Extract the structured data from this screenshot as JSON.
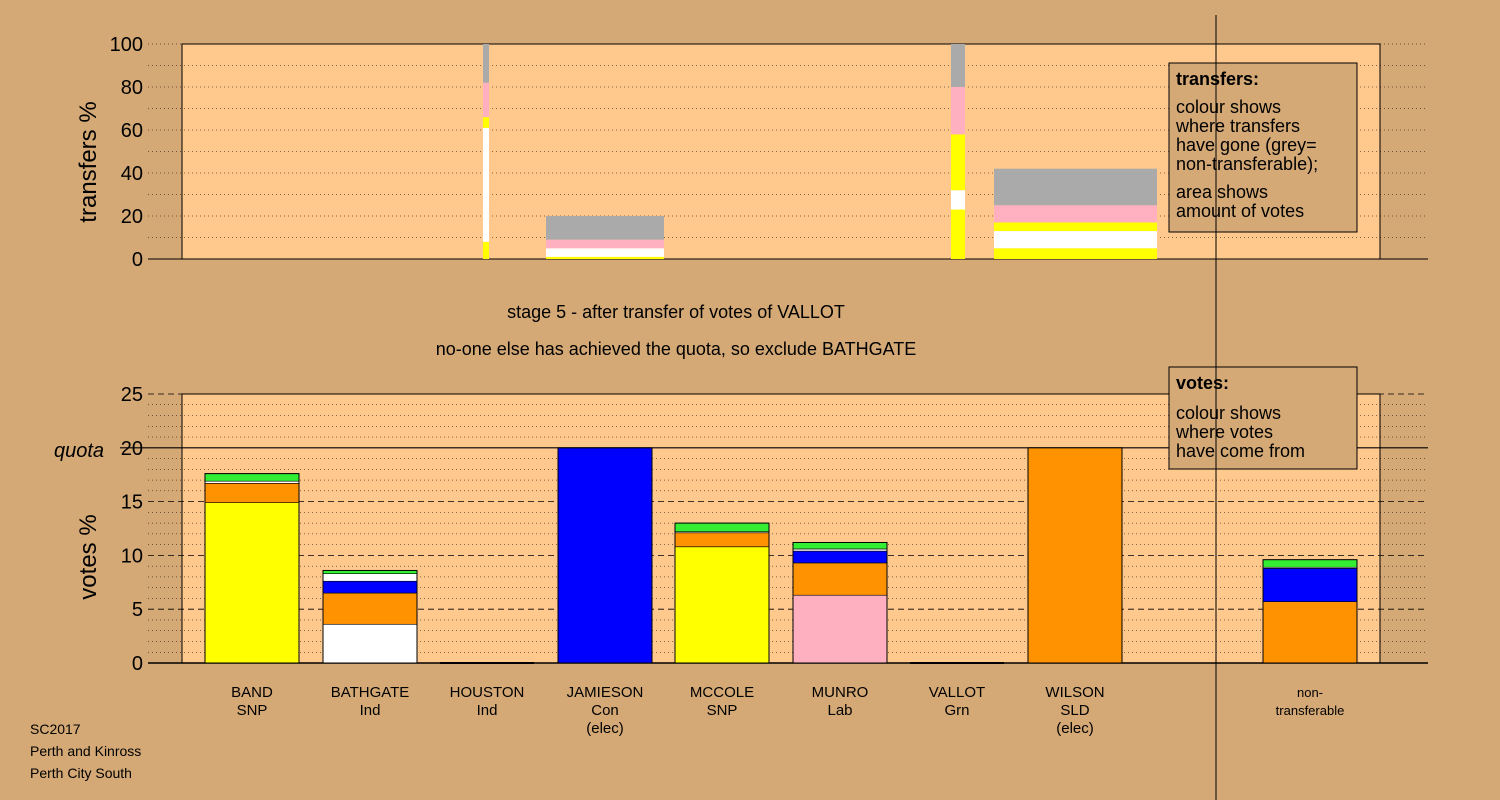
{
  "colors": {
    "background": "#D4A976",
    "plot_area": "#FFC98E",
    "grey": "#AAAAAA",
    "pink": "#FFB0C0",
    "white": "#FFFFFF",
    "yellow": "#FFFF00",
    "green": "#33EE33",
    "blue": "#0000FF",
    "orange": "#FF9200"
  },
  "header": {
    "stage_line": "stage 5 - after transfer of votes of VALLOT",
    "action_line": "no-one else has achieved the quota, so exclude BATHGATE"
  },
  "footer": {
    "election": "SC2017",
    "council": "Perth and Kinross",
    "ward": "Perth City South"
  },
  "legends": {
    "transfers": {
      "title": "transfers:",
      "lines1": [
        "colour shows",
        "where transfers",
        "have gone (grey=",
        "non-transferable);"
      ],
      "lines2": [
        "area shows",
        "amount of votes"
      ]
    },
    "votes": {
      "title": "votes:",
      "lines": [
        "colour shows",
        "where votes",
        "have come from"
      ]
    }
  },
  "chart_data": [
    {
      "type": "bar",
      "subtype": "variable-width stacked transfer bars",
      "ylabel": "transfers %",
      "ylim": [
        0,
        100
      ],
      "yticks": [
        0,
        20,
        40,
        60,
        80,
        100
      ],
      "grid": "dotted every 10",
      "bars": [
        {
          "name": "bar-1",
          "segments": [
            {
              "color": "yellow",
              "from": 0,
              "to": 8
            },
            {
              "color": "white",
              "from": 8,
              "to": 61
            },
            {
              "color": "yellow",
              "from": 61,
              "to": 66
            },
            {
              "color": "pink",
              "from": 66,
              "to": 82
            },
            {
              "color": "grey",
              "from": 82,
              "to": 100
            }
          ]
        },
        {
          "name": "bar-2",
          "segments": [
            {
              "color": "yellow",
              "from": 0,
              "to": 1
            },
            {
              "color": "white",
              "from": 1,
              "to": 5
            },
            {
              "color": "pink",
              "from": 5,
              "to": 9
            },
            {
              "color": "grey",
              "from": 9,
              "to": 20
            }
          ]
        },
        {
          "name": "bar-3",
          "segments": [
            {
              "color": "yellow",
              "from": 0,
              "to": 23
            },
            {
              "color": "white",
              "from": 23,
              "to": 32
            },
            {
              "color": "yellow",
              "from": 32,
              "to": 58
            },
            {
              "color": "pink",
              "from": 58,
              "to": 80
            },
            {
              "color": "grey",
              "from": 80,
              "to": 100
            }
          ]
        },
        {
          "name": "bar-4",
          "segments": [
            {
              "color": "yellow",
              "from": 0,
              "to": 5
            },
            {
              "color": "white",
              "from": 5,
              "to": 13
            },
            {
              "color": "yellow",
              "from": 13,
              "to": 17
            },
            {
              "color": "pink",
              "from": 17,
              "to": 21
            },
            {
              "color": "pink",
              "from": 21,
              "to": 25
            },
            {
              "color": "grey",
              "from": 25,
              "to": 42
            }
          ]
        }
      ]
    },
    {
      "type": "bar",
      "subtype": "stacked",
      "ylabel": "votes %",
      "ylim": [
        0,
        25
      ],
      "yticks": [
        0,
        5,
        10,
        15,
        20,
        25
      ],
      "quota": {
        "label": "quota",
        "value": 20
      },
      "grid": "dashed every 5, dotted every 1",
      "candidates": [
        {
          "name": "BAND",
          "party": "SNP",
          "note": "",
          "segments": [
            {
              "color": "yellow",
              "value": 14.9
            },
            {
              "color": "orange",
              "value": 1.8
            },
            {
              "color": "white",
              "value": 0.2
            },
            {
              "color": "green",
              "value": 0.7
            }
          ]
        },
        {
          "name": "BATHGATE",
          "party": "Ind",
          "note": "",
          "segments": [
            {
              "color": "white",
              "value": 3.6
            },
            {
              "color": "orange",
              "value": 2.9
            },
            {
              "color": "blue",
              "value": 1.1
            },
            {
              "color": "white",
              "value": 0.7
            },
            {
              "color": "green",
              "value": 0.3
            }
          ]
        },
        {
          "name": "HOUSTON",
          "party": "Ind",
          "note": "",
          "segments": []
        },
        {
          "name": "JAMIESON",
          "party": "Con",
          "note": "(elec)",
          "segments": [
            {
              "color": "blue",
              "value": 20
            }
          ]
        },
        {
          "name": "MCCOLE",
          "party": "SNP",
          "note": "",
          "segments": [
            {
              "color": "yellow",
              "value": 10.8
            },
            {
              "color": "orange",
              "value": 1.3
            },
            {
              "color": "white",
              "value": 0.1
            },
            {
              "color": "green",
              "value": 0.8
            }
          ]
        },
        {
          "name": "MUNRO",
          "party": "Lab",
          "note": "",
          "segments": [
            {
              "color": "pink",
              "value": 6.3
            },
            {
              "color": "orange",
              "value": 3.0
            },
            {
              "color": "blue",
              "value": 1.1
            },
            {
              "color": "white",
              "value": 0.2
            },
            {
              "color": "green",
              "value": 0.6
            }
          ]
        },
        {
          "name": "VALLOT",
          "party": "Grn",
          "note": "",
          "segments": []
        },
        {
          "name": "WILSON",
          "party": "SLD",
          "note": "(elec)",
          "segments": [
            {
              "color": "orange",
              "value": 20
            }
          ]
        },
        {
          "name": "non-",
          "party": "transferable",
          "note": "",
          "segments": [
            {
              "color": "orange",
              "value": 5.7
            },
            {
              "color": "blue",
              "value": 3.1
            },
            {
              "color": "white",
              "value": 0.1
            },
            {
              "color": "green",
              "value": 0.7
            }
          ]
        }
      ]
    }
  ]
}
